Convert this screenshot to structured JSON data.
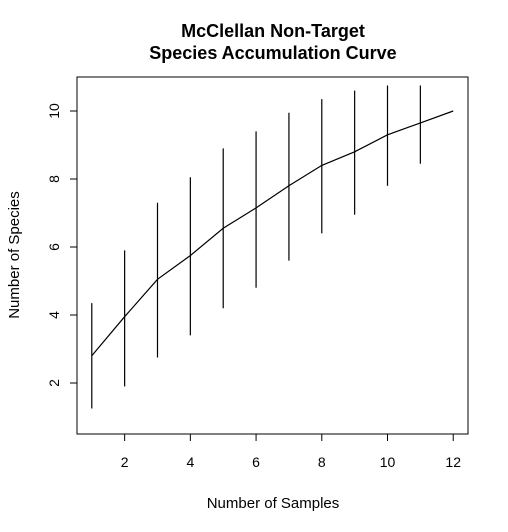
{
  "chart_data": {
    "type": "line",
    "title_line1": "McClellan Non-Target",
    "title_line2": "Species Accumulation Curve",
    "xlabel": "Number of Samples",
    "ylabel": "Number of Species",
    "xlim": [
      0.55,
      12.45
    ],
    "ylim": [
      0.5,
      11.0
    ],
    "x_ticks": [
      2,
      4,
      6,
      8,
      10,
      12
    ],
    "y_ticks": [
      2,
      4,
      6,
      8,
      10
    ],
    "grid": false,
    "legend": "none",
    "series": [
      {
        "x": [
          1,
          2,
          3,
          4,
          5,
          6,
          7,
          8,
          9,
          10,
          11,
          12
        ],
        "y": [
          2.8,
          3.95,
          5.05,
          5.75,
          6.55,
          7.15,
          7.8,
          8.4,
          8.8,
          9.3,
          9.65,
          10.0
        ],
        "error_low": [
          1.25,
          1.9,
          2.75,
          3.4,
          4.2,
          4.8,
          5.6,
          6.4,
          6.95,
          7.8,
          8.45,
          null
        ],
        "error_high": [
          4.35,
          5.9,
          7.3,
          8.05,
          8.9,
          9.4,
          9.95,
          10.35,
          10.6,
          10.75,
          10.75,
          null
        ]
      }
    ],
    "colors": {
      "line": "#000000",
      "axis": "#000000",
      "background": "#ffffff"
    }
  }
}
